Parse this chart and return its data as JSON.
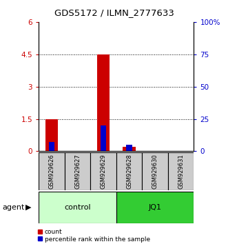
{
  "title": "GDS5172 / ILMN_2777633",
  "samples": [
    "GSM929626",
    "GSM929627",
    "GSM929629",
    "GSM929628",
    "GSM929630",
    "GSM929631"
  ],
  "count_values": [
    1.5,
    0.0,
    4.5,
    0.2,
    0.0,
    0.0
  ],
  "percentile_values": [
    7.0,
    0.0,
    20.0,
    5.0,
    0.0,
    0.0
  ],
  "left_ylim": [
    0,
    6
  ],
  "right_ylim": [
    0,
    100
  ],
  "left_yticks": [
    0,
    1.5,
    3.0,
    4.5,
    6.0
  ],
  "left_yticklabels": [
    "0",
    "1.5",
    "3",
    "4.5",
    "6"
  ],
  "right_yticks": [
    0,
    25,
    50,
    75,
    100
  ],
  "right_yticklabels": [
    "0",
    "25",
    "50",
    "75",
    "100%"
  ],
  "left_tick_color": "#cc0000",
  "right_tick_color": "#0000cc",
  "grid_yticks": [
    1.5,
    3.0,
    4.5
  ],
  "control_color": "#ccffcc",
  "jq1_color": "#33cc33",
  "agent_label": "agent",
  "control_label": "control",
  "jq1_label": "JQ1",
  "count_color": "#cc0000",
  "percentile_color": "#0000cc",
  "sample_bg_color": "#cccccc",
  "figsize": [
    3.31,
    3.54
  ],
  "dpi": 100
}
